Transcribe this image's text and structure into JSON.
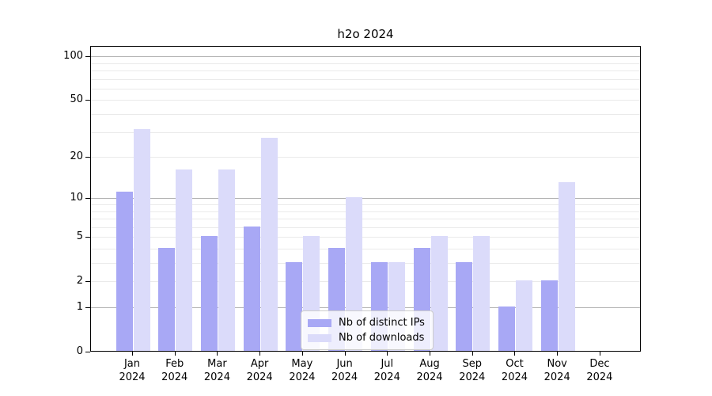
{
  "chart_data": {
    "type": "bar",
    "title": "h2o 2024",
    "categories": [
      "Jan",
      "Feb",
      "Mar",
      "Apr",
      "May",
      "Jun",
      "Jul",
      "Aug",
      "Sep",
      "Oct",
      "Nov",
      "Dec"
    ],
    "x_year_suffix": "2024",
    "series": [
      {
        "key": "distinct-ips",
        "name": "Nb of distinct IPs",
        "color": "#a8a8f5",
        "values": [
          11,
          4,
          5,
          6,
          3,
          4,
          3,
          4,
          3,
          1,
          2,
          0
        ]
      },
      {
        "key": "downloads",
        "name": "Nb of downloads",
        "color": "#dbdbfa",
        "values": [
          31,
          16,
          16,
          27,
          5,
          10,
          3,
          5,
          5,
          2,
          13,
          0
        ]
      }
    ],
    "xlabel": "",
    "ylabel": "",
    "y_scale": "log1p",
    "ylim": [
      0,
      118
    ],
    "y_tick_labels": [
      "0",
      "1",
      "2",
      "5",
      "10",
      "20",
      "50",
      "100"
    ],
    "y_tick_values": [
      0,
      1,
      2,
      5,
      10,
      20,
      50,
      100
    ],
    "y_major_gridlines": [
      1,
      10,
      100
    ],
    "y_minor_gridlines": [
      2,
      3,
      4,
      5,
      6,
      7,
      8,
      9,
      20,
      30,
      40,
      50,
      60,
      70,
      80,
      90
    ],
    "grid": true,
    "legend_position": "lower center"
  },
  "colors": {
    "background": "#ffffff",
    "bar_distinct_ips": "#a8a8f5",
    "bar_downloads": "#dbdbfa",
    "grid_major": "#b2b2b2",
    "grid_minor": "#eaeaea",
    "axis": "#000000",
    "legend_border": "#cccccc"
  }
}
